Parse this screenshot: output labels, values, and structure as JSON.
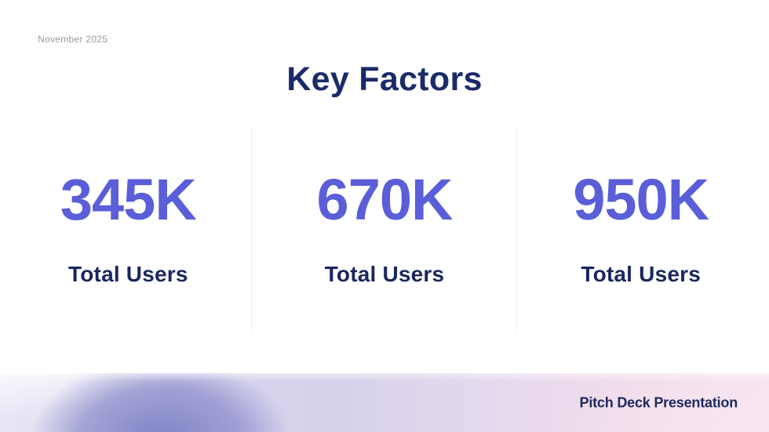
{
  "slide": {
    "date": "November 2025",
    "title": "Key Factors",
    "footer": "Pitch Deck Presentation"
  },
  "stats": [
    {
      "value": "345K",
      "label": "Total Users"
    },
    {
      "value": "670K",
      "label": "Total Users"
    },
    {
      "value": "950K",
      "label": "Total Users"
    }
  ],
  "colors": {
    "background": "#ffffff",
    "stat_value_purple": "#5a5ed8",
    "title_navy": "#1b2b6a",
    "label_navy": "#18275f",
    "footer_navy": "#1d2a5e",
    "date_gray": "#9a9a9a",
    "divider_gray": "#e9e8ee",
    "band_lavender": "#d6d2ec",
    "band_pink": "#f5e2ee",
    "band_blob_purple": "#7c7fc4"
  }
}
